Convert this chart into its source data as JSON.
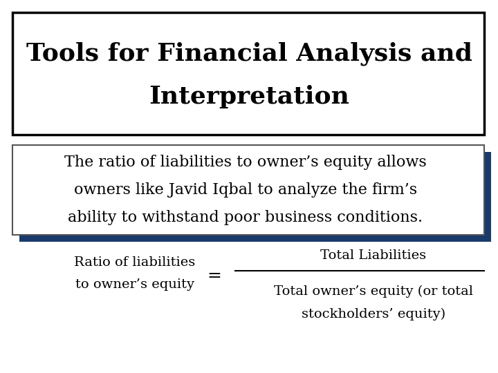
{
  "title_line1": "Tools for Financial Analysis and",
  "title_line2": "Interpretation",
  "subtitle_line1": "The ratio of liabilities to owner’s equity allows",
  "subtitle_line2": "owners like Javid Iqbal to analyze the firm’s",
  "subtitle_line3": "ability to withstand poor business conditions.",
  "ratio_left_line1": "Ratio of liabilities",
  "ratio_left_line2": "to owner’s equity",
  "equals": "=",
  "numerator": "Total Liabilities",
  "denominator_line1": "Total owner’s equity (or total",
  "denominator_line2": "stockholders’ equity)",
  "bg_color": "#ffffff",
  "text_color": "#000000",
  "title_box_color": "#000000",
  "subtitle_box_shadow": "#1a3a6b",
  "title_fontsize": 26,
  "subtitle_fontsize": 16,
  "ratio_fontsize": 14
}
